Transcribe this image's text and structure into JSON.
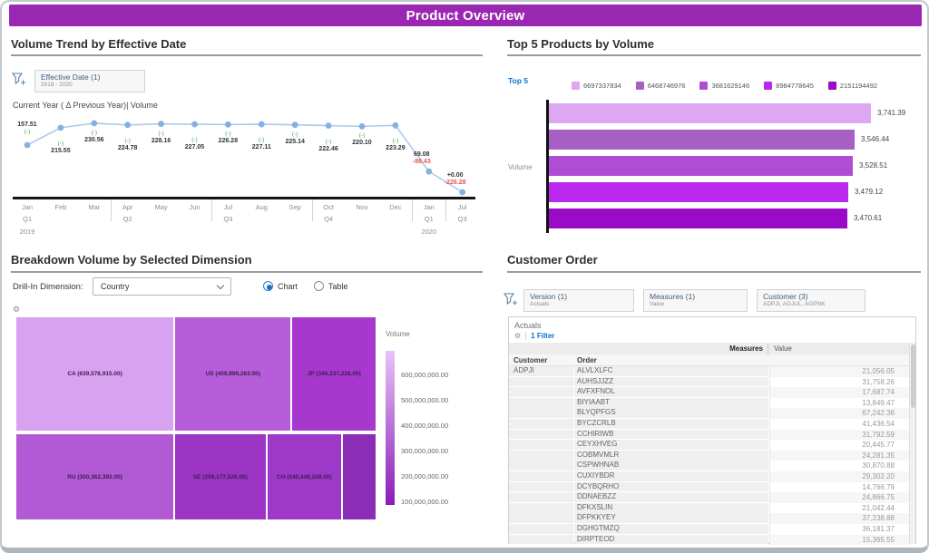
{
  "frame": {
    "title": "Product Overview"
  },
  "colors": {
    "header_bg": "#9a27b2",
    "link_blue": "#0a6ed1",
    "delta_green": "#3fa45b",
    "delta_red": "#e2574c"
  },
  "panels": {
    "volume_trend": {
      "title": "Volume Trend by Effective Date",
      "chip": {
        "label": "Effective Date (1)",
        "range": "2018 - 2020"
      }
    },
    "top5": {
      "title": "Top 5 Products by Volume",
      "link": "Top 5"
    },
    "breakdown": {
      "title": "Breakdown Volume by Selected Dimension",
      "dimension_label": "Drill-In Dimension:",
      "dimension_value": "Country",
      "radio_chart": "Chart",
      "radio_table": "Table"
    },
    "customer_order": {
      "title": "Customer Order",
      "chips": [
        {
          "label": "Version (1)",
          "value": "Actuals"
        },
        {
          "label": "Measures (1)",
          "value": "Value"
        },
        {
          "label": "Customer (3)",
          "value": "ADPJI, AGJUL, AGPNK"
        }
      ],
      "context_label": "Actuals",
      "filter_link": "1 Filter",
      "table": {
        "measures_header": "Measures",
        "value_header": "Value",
        "customer_header": "Customer",
        "order_header": "Order",
        "customer": "ADPJI",
        "rows": [
          {
            "order": "ALVLXLFC",
            "value": "21,056.05"
          },
          {
            "order": "AUHSJJZZ",
            "value": "31,758.26"
          },
          {
            "order": "AVFXFNOL",
            "value": "17,687.74"
          },
          {
            "order": "BIYIAABT",
            "value": "13,849.47"
          },
          {
            "order": "BLYQPFGS",
            "value": "67,242.36"
          },
          {
            "order": "BYCZCRLB",
            "value": "41,436.54"
          },
          {
            "order": "CCHIRIWB",
            "value": "31,792.59"
          },
          {
            "order": "CEYXHVEG",
            "value": "20,445.77"
          },
          {
            "order": "COBMVMLR",
            "value": "24,281.35"
          },
          {
            "order": "CSPWHNAB",
            "value": "30,870.88"
          },
          {
            "order": "CUXIYBDR",
            "value": "29,302.20"
          },
          {
            "order": "DCYBQRHO",
            "value": "14,766.79"
          },
          {
            "order": "DDNAEBZZ",
            "value": "24,866.75"
          },
          {
            "order": "DFKXSLIN",
            "value": "21,042.44"
          },
          {
            "order": "DFPKKYEY",
            "value": "37,238.88"
          },
          {
            "order": "DGHGTMZQ",
            "value": "36,181.37"
          },
          {
            "order": "DIRPTEOD",
            "value": "15,365.55"
          }
        ]
      }
    }
  },
  "chart_data": [
    {
      "type": "line",
      "title": "Current Year ( Δ Previous Year)| Volume",
      "months": [
        "Jan",
        "Feb",
        "Mar",
        "Apr",
        "May",
        "Jun",
        "Jul",
        "Aug",
        "Sep",
        "Oct",
        "Nov",
        "Dec",
        "Jan",
        "Jul"
      ],
      "quarters": [
        {
          "index": 0,
          "label": "Q1"
        },
        {
          "index": 3,
          "label": "Q2"
        },
        {
          "index": 6,
          "label": "Q3"
        },
        {
          "index": 9,
          "label": "Q4"
        },
        {
          "index": 12,
          "label": "Q1"
        },
        {
          "index": 13,
          "label": "Q3"
        }
      ],
      "years": [
        {
          "index": 0,
          "label": "2019"
        },
        {
          "index": 12,
          "label": "2020"
        }
      ],
      "quarter_boundaries": [
        2,
        5,
        8,
        11,
        12
      ],
      "values": [
        157.51,
        215.55,
        230.56,
        224.78,
        228.16,
        227.05,
        226.28,
        227.11,
        225.14,
        222.46,
        220.1,
        223.29,
        69.08,
        0.0
      ],
      "value_labels": [
        "157.51",
        "215.55",
        "230.56",
        "224.78",
        "228.16",
        "227.05",
        "226.28",
        "227.11",
        "225.14",
        "222.46",
        "220.10",
        "223.29",
        "69.08",
        "+0.00"
      ],
      "delta_labels": [
        "(-)",
        "(-)",
        "(-)",
        "(-)",
        "(-)",
        "(-)",
        "(-)",
        "(-)",
        "(-)",
        "(-)",
        "(-)",
        "(-)",
        "-88.43",
        "-226.28"
      ],
      "line_color": "#adc9ec",
      "marker_color": "#85b1e2",
      "ylim": [
        0,
        260
      ]
    },
    {
      "type": "bar",
      "orientation": "horizontal",
      "ylabel": "Volume",
      "legend": [
        "6697337834",
        "6468746976",
        "3681629146",
        "8984778645",
        "2151194492"
      ],
      "values": [
        3741.39,
        3546.44,
        3528.51,
        3479.12,
        3470.61
      ],
      "value_labels": [
        "3,741.39",
        "3,546.44",
        "3,528.51",
        "3,479.12",
        "3,470.61"
      ],
      "colors": [
        "#dda7f2",
        "#a75fc3",
        "#af4ed5",
        "#bb29ef",
        "#9a0ac7"
      ]
    },
    {
      "type": "treemap",
      "legend_title": "Volume",
      "legend_ticks": [
        "600,000,000.00",
        "500,000,000.00",
        "400,000,000.00",
        "300,000,000.00",
        "200,000,000.00",
        "100,000,000.00"
      ],
      "gradient": [
        "#e7c3f6",
        "#8a1cb8"
      ],
      "cells": [
        {
          "label": "CA (639,578,915.00)",
          "value": 639578915,
          "color": "#d9a2f0",
          "x": 0,
          "y": 0,
          "w": 0.44,
          "h": 0.565
        },
        {
          "label": "US (409,999,263.00)",
          "value": 409999263,
          "color": "#b65dd9",
          "x": 0.44,
          "y": 0,
          "w": 0.325,
          "h": 0.565
        },
        {
          "label": "JP (349,337,228.00)",
          "value": 349337228,
          "color": "#a737cd",
          "x": 0.765,
          "y": 0,
          "w": 0.235,
          "h": 0.565
        },
        {
          "label": "RU (300,362,392.00)",
          "value": 300362392,
          "color": "#b259d6",
          "x": 0,
          "y": 0.575,
          "w": 0.44,
          "h": 0.425
        },
        {
          "label": "SE (299,177,526.00)",
          "value": 299177526,
          "color": "#9c34c4",
          "x": 0.44,
          "y": 0.575,
          "w": 0.255,
          "h": 0.425
        },
        {
          "label": "CH (240,448,248.00)",
          "value": 240448248,
          "color": "#9e38c8",
          "x": 0.695,
          "y": 0.575,
          "w": 0.21,
          "h": 0.425
        },
        {
          "label": "",
          "value": 110000000,
          "color": "#8b2db6",
          "x": 0.905,
          "y": 0.575,
          "w": 0.095,
          "h": 0.425
        }
      ]
    }
  ]
}
